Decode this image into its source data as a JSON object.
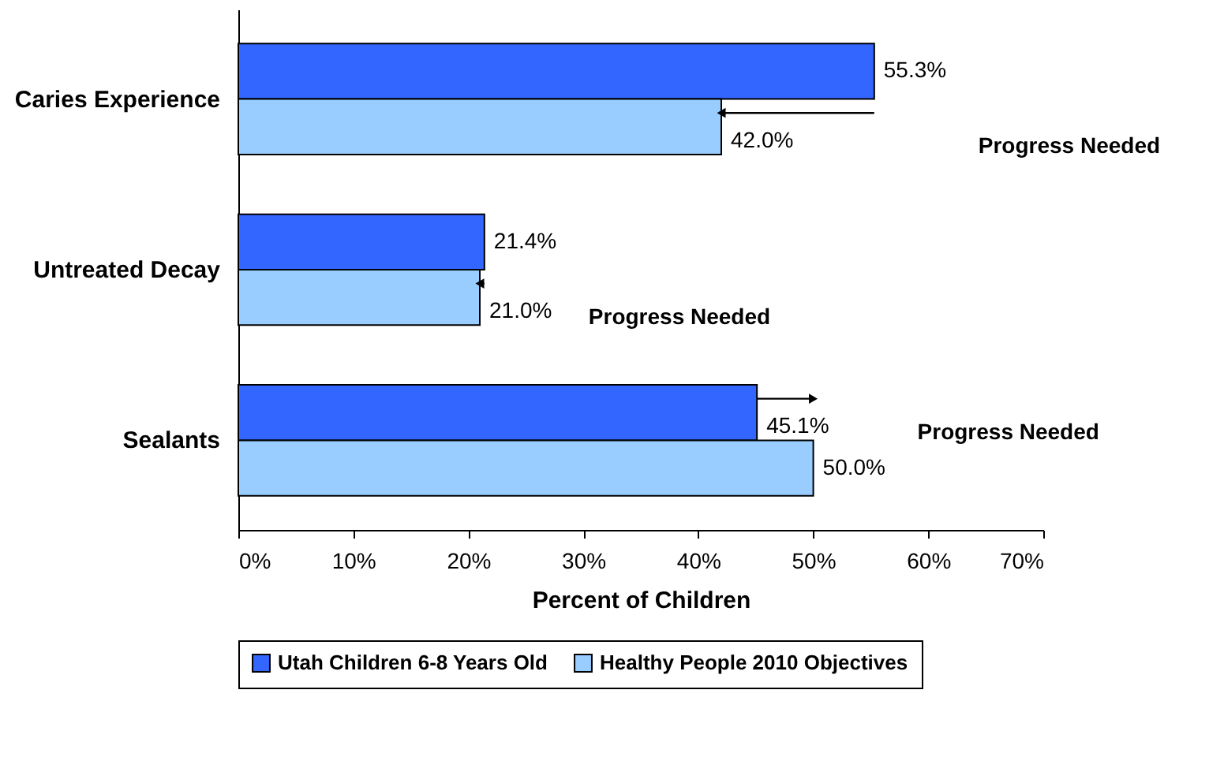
{
  "chart_data": {
    "type": "bar",
    "orientation": "horizontal",
    "xlabel": "Percent of Children",
    "categories": [
      "Caries Experience",
      "Untreated Decay",
      "Sealants"
    ],
    "series": [
      {
        "name": "Utah Children 6-8 Years Old",
        "color": "#3366ff",
        "values": [
          55.3,
          21.4,
          45.1
        ],
        "value_labels": [
          "55.3%",
          "21.4%",
          "45.1%"
        ]
      },
      {
        "name": "Healthy People 2010 Objectives",
        "color": "#99ccff",
        "values": [
          42.0,
          21.0,
          50.0
        ],
        "value_labels": [
          "42.0%",
          "21.0%",
          "50.0%"
        ]
      }
    ],
    "xlim": [
      0,
      70
    ],
    "xticks": [
      {
        "value": 0,
        "label": "0%"
      },
      {
        "value": 10,
        "label": "10%"
      },
      {
        "value": 20,
        "label": "20%"
      },
      {
        "value": 30,
        "label": "30%"
      },
      {
        "value": 40,
        "label": "40%"
      },
      {
        "value": 50,
        "label": "50%"
      },
      {
        "value": 60,
        "label": "60%"
      },
      {
        "value": 70,
        "label": "70%"
      }
    ],
    "annotations": [
      "Progress Needed",
      "Progress Needed",
      "Progress Needed"
    ],
    "grid": false,
    "legend": "bottom"
  }
}
